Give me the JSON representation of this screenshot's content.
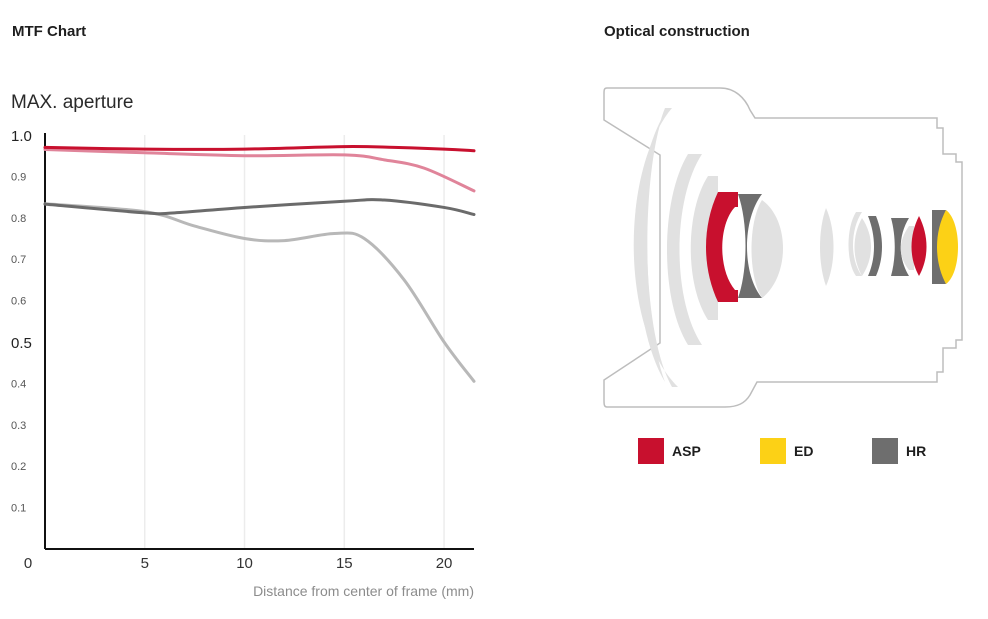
{
  "headings": {
    "mtf": "MTF Chart",
    "optical": "Optical construction"
  },
  "chart_data": {
    "type": "line",
    "title": "MAX. aperture",
    "xlabel": "Distance from center of frame (mm)",
    "ylabel": "",
    "xlim": [
      0,
      21.5
    ],
    "ylim": [
      0,
      1.0
    ],
    "x_ticks": [
      0,
      5,
      10,
      15,
      20
    ],
    "y_ticks": [
      {
        "value": 1.0,
        "label": "1.0"
      },
      {
        "value": 0.9,
        "label": "0.9"
      },
      {
        "value": 0.8,
        "label": "0.8"
      },
      {
        "value": 0.7,
        "label": "0.7"
      },
      {
        "value": 0.6,
        "label": "0.6"
      },
      {
        "value": 0.5,
        "label": "0.5"
      },
      {
        "value": 0.4,
        "label": "0.4"
      },
      {
        "value": 0.3,
        "label": "0.3"
      },
      {
        "value": 0.2,
        "label": "0.2"
      },
      {
        "value": 0.1,
        "label": "0.1"
      }
    ],
    "grid": true,
    "series": [
      {
        "color": "#c8102e",
        "x": [
          0,
          5,
          10,
          15,
          17.5,
          20,
          21.5
        ],
        "y": [
          0.97,
          0.966,
          0.966,
          0.972,
          0.97,
          0.966,
          0.962
        ]
      },
      {
        "color": "#e0849a",
        "x": [
          0,
          5,
          10,
          15,
          17,
          19,
          21.5
        ],
        "y": [
          0.965,
          0.957,
          0.95,
          0.952,
          0.94,
          0.92,
          0.865
        ]
      },
      {
        "color": "#6b6b6b",
        "x": [
          0,
          5,
          6.5,
          10,
          15,
          17,
          20,
          21.5
        ],
        "y": [
          0.833,
          0.812,
          0.812,
          0.825,
          0.84,
          0.843,
          0.825,
          0.808
        ]
      },
      {
        "color": "#b8b8b8",
        "x": [
          0,
          5,
          7.5,
          10,
          12,
          14.5,
          16,
          18,
          20,
          21.5
        ],
        "y": [
          0.834,
          0.815,
          0.78,
          0.75,
          0.745,
          0.762,
          0.75,
          0.65,
          0.5,
          0.405
        ]
      }
    ]
  },
  "optical_legend": [
    {
      "label": "ASP",
      "color": "#c8102e"
    },
    {
      "label": "ED",
      "color": "#fcd116"
    },
    {
      "label": "HR",
      "color": "#6e6e6e"
    }
  ]
}
